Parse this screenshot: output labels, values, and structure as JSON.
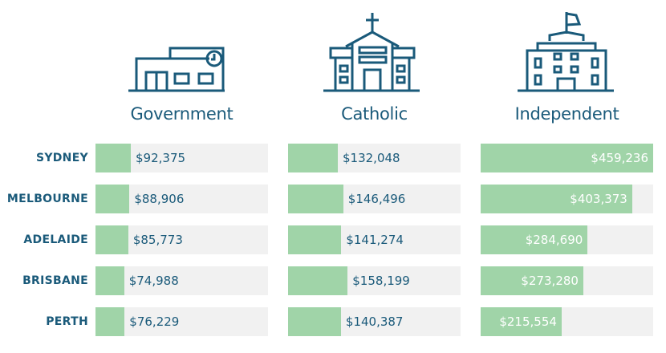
{
  "colors": {
    "accent": "#1a5a7a",
    "bar_fill": "#a0d4a8",
    "track": "#f1f1f1",
    "label_inside": "#ffffff"
  },
  "chart_data": {
    "type": "bar",
    "orientation": "horizontal",
    "title": "",
    "categories": [
      "SYDNEY",
      "MELBOURNE",
      "ADELAIDE",
      "BRISBANE",
      "PERTH"
    ],
    "series": [
      {
        "name": "Government",
        "icon": "government-school-icon",
        "values": [
          92375,
          88906,
          85773,
          74988,
          76229
        ],
        "labels": [
          "$92,375",
          "$88,906",
          "$85,773",
          "$74,988",
          "$76,229"
        ]
      },
      {
        "name": "Catholic",
        "icon": "catholic-school-icon",
        "values": [
          132048,
          146496,
          141274,
          158199,
          140387
        ],
        "labels": [
          "$132,048",
          "$146,496",
          "$141,274",
          "$158,199",
          "$140,387"
        ]
      },
      {
        "name": "Independent",
        "icon": "independent-school-icon",
        "values": [
          459236,
          403373,
          284690,
          273280,
          215554
        ],
        "labels": [
          "$459,236",
          "$403,373",
          "$284,690",
          "$273,280",
          "$215,554"
        ]
      }
    ],
    "xlim": [
      0,
      459236
    ],
    "grid": false,
    "legend": "none"
  }
}
